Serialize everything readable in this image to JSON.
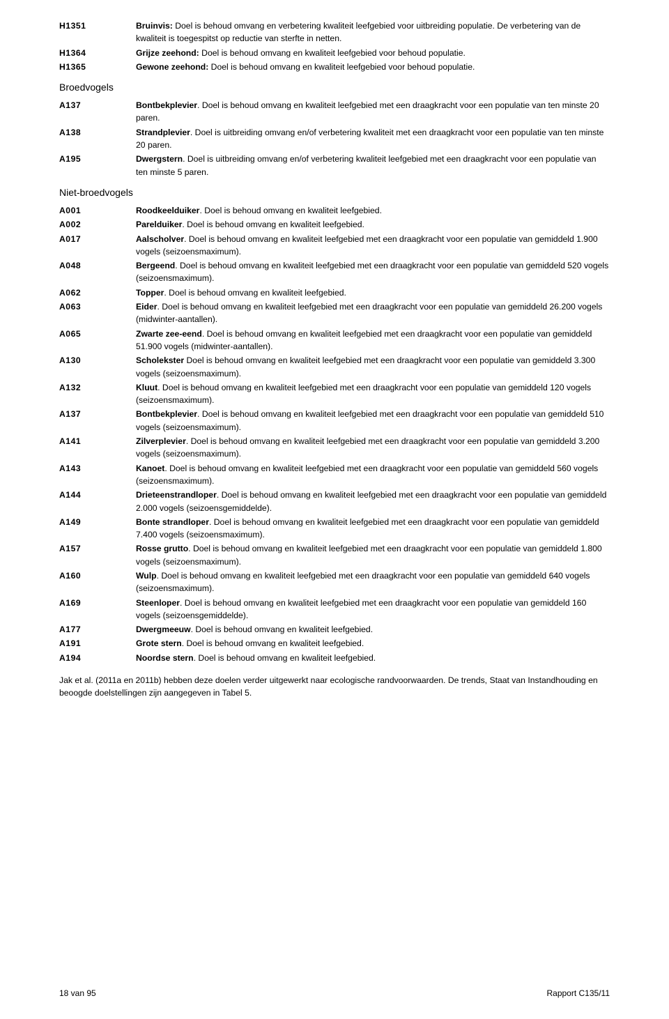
{
  "group1": [
    {
      "code": "H1351",
      "bold": "Bruinvis:",
      "text": " Doel is behoud omvang en verbetering kwaliteit leefgebied voor uitbreiding populatie. De verbetering van de kwaliteit is toegespitst op reductie van sterfte in netten."
    },
    {
      "code": "H1364",
      "bold": "Grijze zeehond:",
      "text": " Doel is behoud omvang en kwaliteit leefgebied voor behoud populatie."
    },
    {
      "code": "H1365",
      "bold": "Gewone zeehond:",
      "text": " Doel is behoud omvang en kwaliteit leefgebied voor behoud populatie."
    }
  ],
  "sectionBroed": "Broedvogels",
  "group2": [
    {
      "code": "A137",
      "bold": "Bontbekplevier",
      "text": ". Doel is behoud omvang en kwaliteit leefgebied met een draagkracht voor een populatie van ten minste 20 paren."
    },
    {
      "code": "A138",
      "bold": "Strandplevier",
      "text": ". Doel is uitbreiding omvang en/of verbetering kwaliteit met een draagkracht voor een populatie van ten minste 20 paren."
    },
    {
      "code": "A195",
      "bold": "Dwergstern",
      "text": ". Doel is uitbreiding omvang en/of verbetering kwaliteit leefgebied met een draagkracht voor een populatie van ten minste 5 paren."
    }
  ],
  "sectionNiet": "Niet-broedvogels",
  "group3": [
    {
      "code": "A001",
      "bold": "Roodkeelduiker",
      "text": ". Doel is behoud omvang en kwaliteit leefgebied."
    },
    {
      "code": "A002",
      "bold": "Parelduiker",
      "text": ". Doel is behoud omvang en kwaliteit leefgebied."
    },
    {
      "code": "A017",
      "bold": "Aalscholver",
      "text": ". Doel is behoud omvang en kwaliteit leefgebied met een draagkracht voor een populatie van gemiddeld 1.900 vogels (seizoensmaximum)."
    },
    {
      "code": "A048",
      "bold": "Bergeend",
      "text": ". Doel is behoud omvang en kwaliteit leefgebied met een draagkracht voor een populatie van gemiddeld 520 vogels (seizoensmaximum)."
    },
    {
      "code": "A062",
      "bold": "Topper",
      "text": ". Doel is behoud omvang en kwaliteit leefgebied."
    },
    {
      "code": "A063",
      "bold": "Eider",
      "text": ". Doel is behoud omvang en kwaliteit leefgebied met een draagkracht voor een populatie van gemiddeld 26.200 vogels (midwinter-aantallen)."
    },
    {
      "code": "A065",
      "bold": "Zwarte zee-eend",
      "text": ". Doel is behoud omvang en kwaliteit leefgebied met een draagkracht voor een populatie van gemiddeld 51.900 vogels (midwinter-aantallen)."
    },
    {
      "code": "A130",
      "bold": "Scholekster",
      "text": " Doel is behoud omvang en kwaliteit leefgebied met een draagkracht voor een populatie van gemiddeld 3.300 vogels (seizoensmaximum)."
    },
    {
      "code": "A132",
      "bold": "Kluut",
      "text": ". Doel is behoud omvang en kwaliteit leefgebied met een draagkracht voor een populatie van gemiddeld 120 vogels (seizoensmaximum)."
    },
    {
      "code": "A137",
      "bold": "Bontbekplevier",
      "text": ". Doel is behoud omvang en kwaliteit leefgebied met een draagkracht voor een populatie van gemiddeld 510 vogels (seizoensmaximum)."
    },
    {
      "code": "A141",
      "bold": "Zilverplevier",
      "text": ". Doel is behoud omvang en kwaliteit leefgebied met een draagkracht voor een populatie van gemiddeld 3.200 vogels (seizoensmaximum)."
    },
    {
      "code": "A143",
      "bold": "Kanoet",
      "text": ". Doel is behoud omvang en kwaliteit leefgebied met een draagkracht voor een populatie van gemiddeld 560 vogels (seizoensmaximum)."
    },
    {
      "code": "A144",
      "bold": "Drieteenstrandloper",
      "text": ". Doel is behoud omvang en kwaliteit leefgebied met een draagkracht voor een populatie van gemiddeld 2.000 vogels (seizoensgemiddelde)."
    },
    {
      "code": "A149",
      "bold": "Bonte strandloper",
      "text": ". Doel is behoud omvang en kwaliteit leefgebied met een draagkracht voor een populatie van gemiddeld 7.400 vogels (seizoensmaximum)."
    },
    {
      "code": "A157",
      "bold": "Rosse grutto",
      "text": ". Doel is behoud omvang en kwaliteit leefgebied met een draagkracht voor een populatie van gemiddeld 1.800 vogels (seizoensmaximum)."
    },
    {
      "code": "A160",
      "bold": "Wulp",
      "text": ". Doel is behoud omvang en kwaliteit leefgebied met een draagkracht voor een populatie van gemiddeld 640 vogels (seizoensmaximum)."
    },
    {
      "code": "A169",
      "bold": "Steenloper",
      "text": ". Doel is behoud omvang en kwaliteit leefgebied met een draagkracht voor een populatie van gemiddeld 160 vogels (seizoensgemiddelde)."
    },
    {
      "code": "A177",
      "bold": "Dwergmeeuw",
      "text": ". Doel is behoud omvang en kwaliteit leefgebied."
    },
    {
      "code": "A191",
      "bold": "Grote stern",
      "text": ". Doel is behoud omvang en kwaliteit leefgebied."
    },
    {
      "code": "A194",
      "bold": "Noordse stern",
      "text": ". Doel is behoud omvang en kwaliteit leefgebied."
    }
  ],
  "paragraph": "Jak et al. (2011a en 2011b) hebben deze doelen verder uitgewerkt naar ecologische randvoorwaarden. De trends, Staat van Instandhouding en beoogde doelstellingen zijn aangegeven in Tabel 5.",
  "footerLeft": "18 van 95",
  "footerRight": "Rapport C135/11"
}
